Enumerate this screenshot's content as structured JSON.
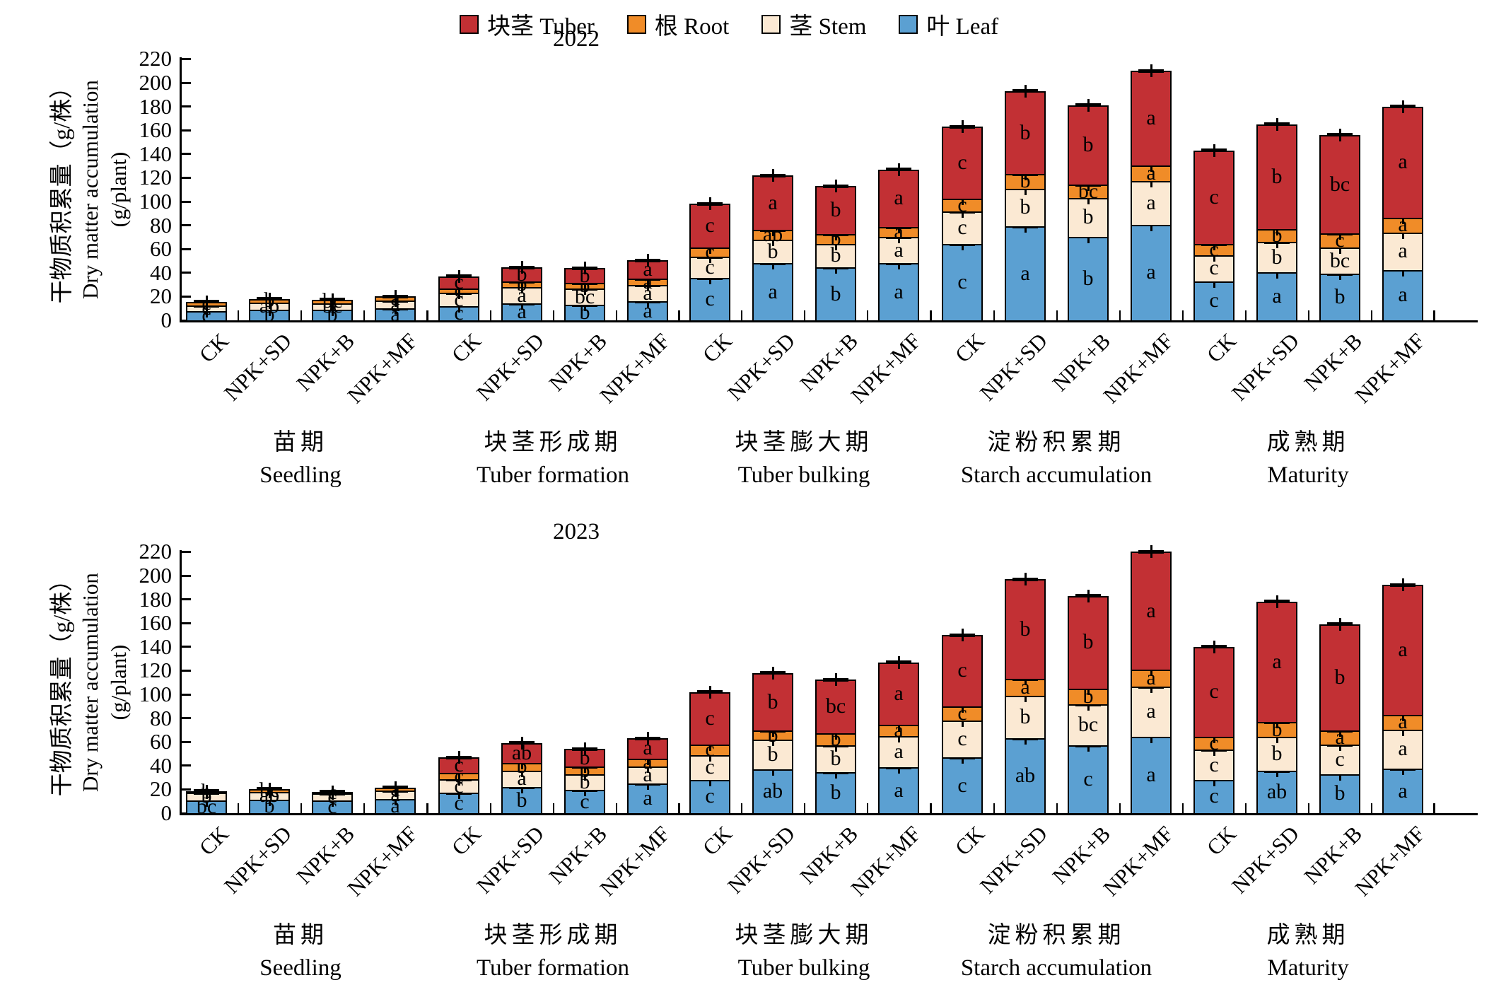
{
  "figure": {
    "y_axis_label_zh": "干物质积累量（g/株）",
    "y_axis_label_en": "Dry matter accumulation",
    "y_axis_label_unit": "(g/plant)"
  },
  "chart_data": {
    "type": "bar",
    "stacked": true,
    "value_unit": "g/plant",
    "ylim": [
      0,
      220
    ],
    "ytick_step": 20,
    "grid": false,
    "error_bars": true,
    "legend_position": "top-center",
    "legend": [
      {
        "key": "tuber",
        "label": "块茎 Tuber",
        "color": "#c23034"
      },
      {
        "key": "root",
        "label": "根 Root",
        "color": "#f08c28"
      },
      {
        "key": "stem",
        "label": "茎 Stem",
        "color": "#fbe9d3"
      },
      {
        "key": "leaf",
        "label": "叶 Leaf",
        "color": "#5ba0d2"
      }
    ],
    "stack_order_bottom_to_top": [
      "leaf",
      "stem",
      "root",
      "tuber"
    ],
    "treatments": [
      "CK",
      "NPK+SD",
      "NPK+B",
      "NPK+MF"
    ],
    "stages": [
      {
        "zh": "苗期",
        "en": "Seedling"
      },
      {
        "zh": "块茎形成期",
        "en": "Tuber formation"
      },
      {
        "zh": "块茎膨大期",
        "en": "Tuber bulking"
      },
      {
        "zh": "淀粉积累期",
        "en": "Starch accumulation"
      },
      {
        "zh": "成熟期",
        "en": "Maturity"
      }
    ],
    "panels": [
      {
        "title": "2022",
        "groups": [
          {
            "stage": 0,
            "bars": [
              {
                "t": "CK",
                "v": [
                  8,
                  4.5,
                  3,
                  0
                ],
                "s": [
                  "c",
                  "c",
                  "c",
                  ""
                ]
              },
              {
                "t": "NPK+SD",
                "v": [
                  9,
                  6,
                  3,
                  0
                ],
                "s": [
                  "b",
                  "ab",
                  "b",
                  ""
                ]
              },
              {
                "t": "NPK+B",
                "v": [
                  9,
                  5.5,
                  3,
                  0
                ],
                "s": [
                  "b",
                  "bc",
                  "bc",
                  ""
                ]
              },
              {
                "t": "NPK+MF",
                "v": [
                  10,
                  6.5,
                  3.5,
                  0
                ],
                "s": [
                  "a",
                  "a",
                  "a",
                  ""
                ]
              }
            ]
          },
          {
            "stage": 1,
            "bars": [
              {
                "t": "CK",
                "v": [
                  12,
                  11,
                  4,
                  10
                ],
                "s": [
                  "c",
                  "c",
                  "c",
                  "c"
                ]
              },
              {
                "t": "NPK+SD",
                "v": [
                  14,
                  14,
                  4.5,
                  12
                ],
                "s": [
                  "a",
                  "a",
                  "b",
                  "b"
                ]
              },
              {
                "t": "NPK+B",
                "v": [
                  13,
                  13.5,
                  5,
                  12.5
                ],
                "s": [
                  "b",
                  "bc",
                  "b",
                  "b"
                ]
              },
              {
                "t": "NPK+MF",
                "v": [
                  16,
                  13.5,
                  5.5,
                  15.5
                ],
                "s": [
                  "a",
                  "a",
                  "a",
                  "a"
                ]
              }
            ]
          },
          {
            "stage": 2,
            "bars": [
              {
                "t": "CK",
                "v": [
                  35.5,
                  18,
                  8,
                  36.5
                ],
                "s": [
                  "c",
                  "c",
                  "c",
                  "c"
                ]
              },
              {
                "t": "NPK+SD",
                "v": [
                  48,
                  20,
                  8,
                  46
                ],
                "s": [
                  "a",
                  "b",
                  "ab",
                  "a"
                ]
              },
              {
                "t": "NPK+B",
                "v": [
                  44.5,
                  20,
                  8,
                  40.5
                ],
                "s": [
                  "b",
                  "b",
                  "b",
                  "b"
                ]
              },
              {
                "t": "NPK+MF",
                "v": [
                  48,
                  22,
                  8.5,
                  48.5
                ],
                "s": [
                  "a",
                  "a",
                  "a",
                  "a"
                ]
              }
            ]
          },
          {
            "stage": 3,
            "bars": [
              {
                "t": "CK",
                "v": [
                  64,
                  27.5,
                  11,
                  60.5
                ],
                "s": [
                  "c",
                  "c",
                  "c",
                  "c"
                ]
              },
              {
                "t": "NPK+SD",
                "v": [
                  79,
                  32,
                  12,
                  70
                ],
                "s": [
                  "a",
                  "b",
                  "b",
                  "b"
                ]
              },
              {
                "t": "NPK+B",
                "v": [
                  70.5,
                  32.5,
                  11,
                  67
                ],
                "s": [
                  "b",
                  "b",
                  "bc",
                  "b"
                ]
              },
              {
                "t": "NPK+MF",
                "v": [
                  80.5,
                  37,
                  13,
                  79.5
                ],
                "s": [
                  "a",
                  "a",
                  "a",
                  "a"
                ]
              }
            ]
          },
          {
            "stage": 4,
            "bars": [
              {
                "t": "CK",
                "v": [
                  33,
                  22,
                  9,
                  79
                ],
                "s": [
                  "c",
                  "c",
                  "c",
                  "c"
                ]
              },
              {
                "t": "NPK+SD",
                "v": [
                  40.5,
                  25.5,
                  11,
                  88
                ],
                "s": [
                  "a",
                  "b",
                  "b",
                  "b"
                ]
              },
              {
                "t": "NPK+B",
                "v": [
                  39,
                  22.5,
                  11.5,
                  83
                ],
                "s": [
                  "b",
                  "bc",
                  "c",
                  "bc"
                ]
              },
              {
                "t": "NPK+MF",
                "v": [
                  42.5,
                  31.5,
                  12.5,
                  93.5
                ],
                "s": [
                  "a",
                  "a",
                  "a",
                  "a"
                ]
              }
            ]
          }
        ]
      },
      {
        "title": "2023",
        "groups": [
          {
            "stage": 0,
            "bars": [
              {
                "t": "CK",
                "v": [
                  11,
                  6,
                  1.5,
                  0
                ],
                "s": [
                  "bc",
                  "b",
                  "b",
                  ""
                ]
              },
              {
                "t": "NPK+SD",
                "v": [
                  11.5,
                  6.5,
                  2.5,
                  0
                ],
                "s": [
                  "b",
                  "ab",
                  "bc",
                  ""
                ]
              },
              {
                "t": "NPK+B",
                "v": [
                  11,
                  5.5,
                  1.5,
                  0
                ],
                "s": [
                  "c",
                  "c",
                  "c",
                  ""
                ]
              },
              {
                "t": "NPK+MF",
                "v": [
                  12,
                  7,
                  2.5,
                  0
                ],
                "s": [
                  "a",
                  "a",
                  "a",
                  ""
                ]
              }
            ]
          },
          {
            "stage": 1,
            "bars": [
              {
                "t": "CK",
                "v": [
                  17,
                  11.5,
                  5.5,
                  13
                ],
                "s": [
                  "c",
                  "c",
                  "c",
                  "c"
                ]
              },
              {
                "t": "NPK+SD",
                "v": [
                  22,
                  14,
                  6.5,
                  16.5
                ],
                "s": [
                  "b",
                  "a",
                  "b",
                  "ab"
                ]
              },
              {
                "t": "NPK+B",
                "v": [
                  19.5,
                  13.5,
                  6,
                  15
                ],
                "s": [
                  "c",
                  "b",
                  "b",
                  "b"
                ]
              },
              {
                "t": "NPK+MF",
                "v": [
                  25,
                  14.5,
                  6.5,
                  17
                ],
                "s": [
                  "a",
                  "a",
                  "a",
                  "a"
                ]
              }
            ]
          },
          {
            "stage": 2,
            "bars": [
              {
                "t": "CK",
                "v": [
                  28,
                  21,
                  9,
                  44
                ],
                "s": [
                  "c",
                  "c",
                  "c",
                  "c"
                ]
              },
              {
                "t": "NPK+SD",
                "v": [
                  37,
                  25,
                  7.5,
                  48.5
                ],
                "s": [
                  "ab",
                  "b",
                  "b",
                  "b"
                ]
              },
              {
                "t": "NPK+B",
                "v": [
                  34.5,
                  22.5,
                  10.5,
                  45
                ],
                "s": [
                  "b",
                  "b",
                  "b",
                  "bc"
                ]
              },
              {
                "t": "NPK+MF",
                "v": [
                  38.5,
                  26.5,
                  9.5,
                  52.5
                ],
                "s": [
                  "a",
                  "a",
                  "a",
                  "a"
                ]
              }
            ]
          },
          {
            "stage": 3,
            "bars": [
              {
                "t": "CK",
                "v": [
                  47,
                  31,
                  12,
                  60
                ],
                "s": [
                  "c",
                  "c",
                  "c",
                  "c"
                ]
              },
              {
                "t": "NPK+SD",
                "v": [
                  63,
                  36,
                  14,
                  84
                ],
                "s": [
                  "ab",
                  "b",
                  "a",
                  "b"
                ]
              },
              {
                "t": "NPK+B",
                "v": [
                  57,
                  34.5,
                  13.5,
                  78
                ],
                "s": [
                  "c",
                  "bc",
                  "b",
                  "b"
                ]
              },
              {
                "t": "NPK+MF",
                "v": [
                  64.5,
                  42,
                  14.5,
                  99
                ],
                "s": [
                  "a",
                  "a",
                  "a",
                  "a"
                ]
              }
            ]
          },
          {
            "stage": 4,
            "bars": [
              {
                "t": "CK",
                "v": [
                  28,
                  25.5,
                  11,
                  75.5
                ],
                "s": [
                  "c",
                  "c",
                  "c",
                  "c"
                ]
              },
              {
                "t": "NPK+SD",
                "v": [
                  35.5,
                  29,
                  12,
                  101.5
                ],
                "s": [
                  "ab",
                  "b",
                  "b",
                  "a"
                ]
              },
              {
                "t": "NPK+B",
                "v": [
                  33,
                  24.5,
                  12,
                  89.5
                ],
                "s": [
                  "b",
                  "c",
                  "a",
                  "b"
                ]
              },
              {
                "t": "NPK+MF",
                "v": [
                  37.5,
                  33,
                  12.5,
                  109
                ],
                "s": [
                  "a",
                  "a",
                  "a",
                  "a"
                ]
              }
            ]
          }
        ]
      }
    ]
  }
}
